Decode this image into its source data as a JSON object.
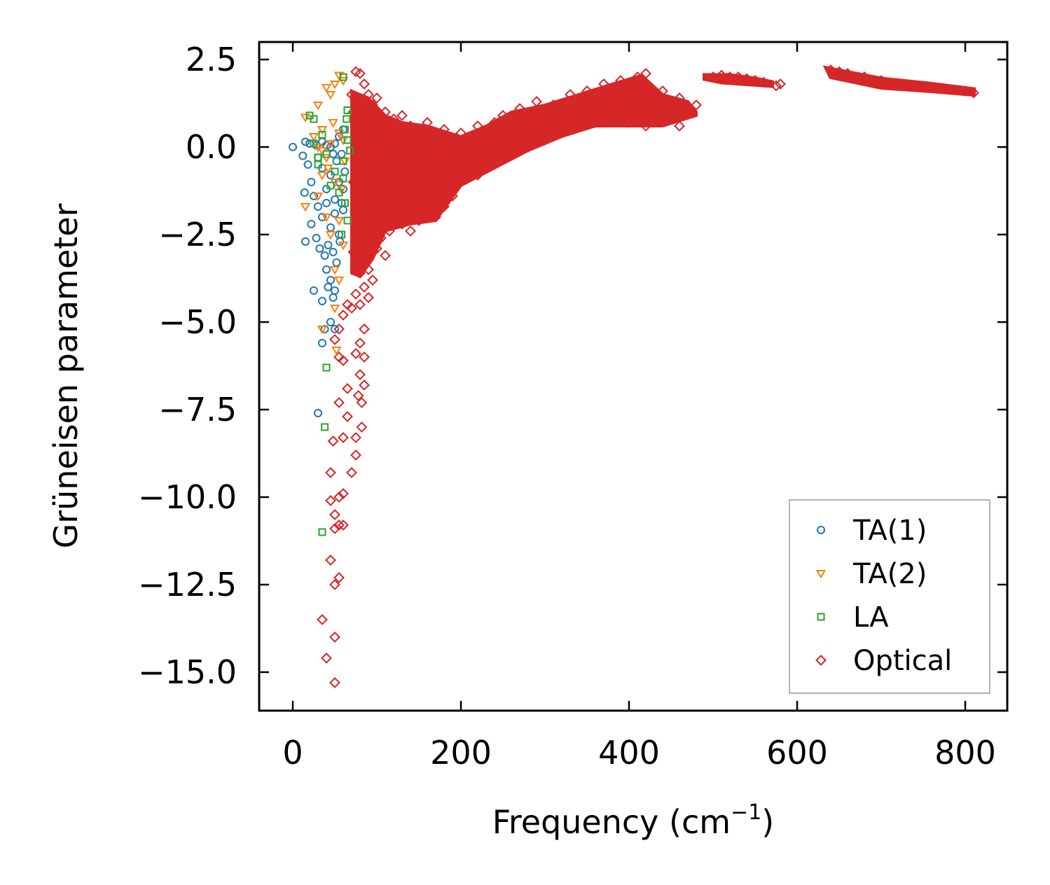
{
  "chart_data": {
    "type": "scatter",
    "title": "",
    "xlabel": "Frequency (cm",
    "xlabel_sup": "−1",
    "xlabel_close": ")",
    "ylabel": "Grüneisen parameter",
    "xlim": [
      -40,
      850
    ],
    "ylim": [
      -16.1,
      3.0
    ],
    "xticks": [
      0,
      200,
      400,
      600,
      800
    ],
    "xtick_labels": [
      "0",
      "200",
      "400",
      "600",
      "800"
    ],
    "yticks": [
      2.5,
      0,
      -2.5,
      -5,
      -7.5,
      -10,
      -12.5,
      -15
    ],
    "ytick_labels": [
      "2.5",
      "0.0",
      "−2.5",
      "−5.0",
      "−7.5",
      "−10.0",
      "−12.5",
      "−15.0"
    ],
    "grid": false,
    "legend_position": "bottom-right",
    "series": [
      {
        "name": "TA(1)",
        "marker": "circle",
        "color": "#1f77b4",
        "points": [
          [
            0,
            0
          ],
          [
            15,
            0.15
          ],
          [
            20,
            0.1
          ],
          [
            28,
            0.05
          ],
          [
            35,
            0.15
          ],
          [
            40,
            0.05
          ],
          [
            45,
            0
          ],
          [
            50,
            0.1
          ],
          [
            55,
            0.3
          ],
          [
            60,
            0.5
          ],
          [
            12,
            -0.25
          ],
          [
            18,
            -0.5
          ],
          [
            22,
            -1
          ],
          [
            30,
            -0.3
          ],
          [
            35,
            -0.6
          ],
          [
            40,
            -1.2
          ],
          [
            45,
            -0.8
          ],
          [
            50,
            -1.5
          ],
          [
            55,
            -1
          ],
          [
            58,
            -0.2
          ],
          [
            14,
            -1.3
          ],
          [
            25,
            -1.4
          ],
          [
            30,
            -1.7
          ],
          [
            35,
            -2
          ],
          [
            40,
            -1.6
          ],
          [
            45,
            -2.3
          ],
          [
            50,
            -1.9
          ],
          [
            55,
            -2.5
          ],
          [
            60,
            -1.8
          ],
          [
            15,
            -2.7
          ],
          [
            22,
            -2.2
          ],
          [
            28,
            -2.6
          ],
          [
            32,
            -2.9
          ],
          [
            38,
            -3.1
          ],
          [
            42,
            -2.8
          ],
          [
            48,
            -3
          ],
          [
            52,
            -3.3
          ],
          [
            56,
            -2.7
          ],
          [
            40,
            -3.5
          ],
          [
            45,
            -3.8
          ],
          [
            50,
            -4.1
          ],
          [
            42,
            -4
          ],
          [
            48,
            -4.3
          ],
          [
            25,
            -4.1
          ],
          [
            35,
            -4.4
          ],
          [
            45,
            -5
          ],
          [
            50,
            -5.2
          ],
          [
            38,
            -5.2
          ],
          [
            35,
            -5.6
          ],
          [
            30,
            -7.6
          ],
          [
            60,
            -1.2
          ],
          [
            62,
            -0.7
          ],
          [
            58,
            -1.6
          ],
          [
            52,
            -0.4
          ],
          [
            48,
            -0.2
          ]
        ]
      },
      {
        "name": "TA(2)",
        "marker": "triangle-down",
        "color": "#ff7f0e",
        "points": [
          [
            15,
            0.85
          ],
          [
            30,
            1.2
          ],
          [
            40,
            1.7
          ],
          [
            45,
            1.5
          ],
          [
            50,
            1.8
          ],
          [
            55,
            2.05
          ],
          [
            60,
            1.9
          ],
          [
            35,
            0.5
          ],
          [
            48,
            0.7
          ],
          [
            25,
            0.3
          ],
          [
            30,
            0
          ],
          [
            40,
            -0.3
          ],
          [
            45,
            0.1
          ],
          [
            55,
            0.4
          ],
          [
            60,
            0.2
          ],
          [
            35,
            -0.8
          ],
          [
            50,
            -1
          ],
          [
            58,
            -1.2
          ],
          [
            15,
            -1.7
          ],
          [
            30,
            -1.4
          ],
          [
            40,
            -2
          ],
          [
            45,
            -2.5
          ],
          [
            55,
            -2.1
          ],
          [
            60,
            -2.8
          ],
          [
            50,
            -3.5
          ],
          [
            55,
            -3.8
          ],
          [
            50,
            -4.6
          ],
          [
            35,
            -5.2
          ],
          [
            52,
            -5.8
          ],
          [
            35,
            -0.1
          ],
          [
            42,
            -0.6
          ],
          [
            62,
            -0.4
          ]
        ]
      },
      {
        "name": "LA",
        "marker": "square",
        "color": "#2ca02c",
        "points": [
          [
            20,
            0.9
          ],
          [
            25,
            0.8
          ],
          [
            35,
            0.35
          ],
          [
            60,
            2
          ],
          [
            65,
            1.05
          ],
          [
            62,
            0.5
          ],
          [
            65,
            0.2
          ],
          [
            68,
            -0.1
          ],
          [
            30,
            -0.5
          ],
          [
            40,
            -0.2
          ],
          [
            50,
            -0.7
          ],
          [
            55,
            -1.3
          ],
          [
            60,
            -0.9
          ],
          [
            62,
            -1.6
          ],
          [
            65,
            -2.1
          ],
          [
            58,
            -2.5
          ],
          [
            45,
            -1.1
          ],
          [
            40,
            -6.3
          ],
          [
            38,
            -8
          ],
          [
            35,
            -11
          ],
          [
            30,
            -0.3
          ],
          [
            25,
            0.1
          ],
          [
            60,
            -0.4
          ],
          [
            64,
            0.8
          ]
        ]
      },
      {
        "name": "Optical",
        "marker": "diamond",
        "color": "#d62728",
        "points": [
          [
            75,
            2.15
          ],
          [
            80,
            2.1
          ],
          [
            85,
            1.8
          ],
          [
            90,
            1.5
          ],
          [
            95,
            1.2
          ],
          [
            100,
            1.4
          ],
          [
            110,
            1
          ],
          [
            120,
            0.8
          ],
          [
            130,
            0.9
          ],
          [
            140,
            0.6
          ],
          [
            160,
            0.7
          ],
          [
            180,
            0.5
          ],
          [
            200,
            0.4
          ],
          [
            220,
            0.6
          ],
          [
            240,
            0.7
          ],
          [
            250,
            0.9
          ],
          [
            270,
            1.1
          ],
          [
            290,
            1.3
          ],
          [
            310,
            1.2
          ],
          [
            330,
            1.5
          ],
          [
            350,
            1.6
          ],
          [
            370,
            1.8
          ],
          [
            390,
            1.9
          ],
          [
            410,
            2
          ],
          [
            420,
            2.1
          ],
          [
            440,
            1.6
          ],
          [
            460,
            1.4
          ],
          [
            480,
            1.2
          ],
          [
            500,
            2
          ],
          [
            510,
            2.05
          ],
          [
            520,
            2
          ],
          [
            530,
            2
          ],
          [
            540,
            1.95
          ],
          [
            550,
            1.9
          ],
          [
            560,
            1.85
          ],
          [
            575,
            1.75
          ],
          [
            580,
            1.8
          ],
          [
            640,
            2.2
          ],
          [
            650,
            2.15
          ],
          [
            660,
            2.1
          ],
          [
            680,
            2
          ],
          [
            700,
            1.9
          ],
          [
            720,
            1.8
          ],
          [
            740,
            1.75
          ],
          [
            760,
            1.7
          ],
          [
            780,
            1.65
          ],
          [
            800,
            1.6
          ],
          [
            810,
            1.55
          ],
          [
            80,
            0.5
          ],
          [
            90,
            0.2
          ],
          [
            100,
            -0.1
          ],
          [
            110,
            -0.3
          ],
          [
            120,
            -0.5
          ],
          [
            130,
            -0.7
          ],
          [
            140,
            -0.6
          ],
          [
            150,
            -0.8
          ],
          [
            160,
            -0.5
          ],
          [
            170,
            -0.4
          ],
          [
            180,
            -0.2
          ],
          [
            190,
            -0.1
          ],
          [
            200,
            0
          ],
          [
            210,
            -0.3
          ],
          [
            220,
            -0.2
          ],
          [
            230,
            -0.1
          ],
          [
            240,
            0.1
          ],
          [
            250,
            0.2
          ],
          [
            260,
            0.4
          ],
          [
            270,
            0.5
          ],
          [
            280,
            0.7
          ],
          [
            300,
            0.8
          ],
          [
            320,
            0.9
          ],
          [
            340,
            1
          ],
          [
            360,
            1.1
          ],
          [
            380,
            1.2
          ],
          [
            400,
            1.3
          ],
          [
            420,
            1.1
          ],
          [
            440,
            1
          ],
          [
            460,
            0.9
          ],
          [
            470,
            1
          ],
          [
            80,
            -0.5
          ],
          [
            90,
            -1
          ],
          [
            100,
            -1.5
          ],
          [
            110,
            -1.8
          ],
          [
            120,
            -2
          ],
          [
            130,
            -2.2
          ],
          [
            140,
            -2.4
          ],
          [
            150,
            -2.1
          ],
          [
            160,
            -1.9
          ],
          [
            170,
            -2
          ],
          [
            180,
            -1.7
          ],
          [
            190,
            -1.4
          ],
          [
            200,
            -1
          ],
          [
            220,
            -0.8
          ],
          [
            240,
            -0.5
          ],
          [
            260,
            -0.2
          ],
          [
            280,
            0
          ],
          [
            300,
            0.2
          ],
          [
            320,
            0.4
          ],
          [
            340,
            0.6
          ],
          [
            360,
            0.7
          ],
          [
            380,
            0.8
          ],
          [
            400,
            0.7
          ],
          [
            420,
            0.6
          ],
          [
            440,
            0.8
          ],
          [
            460,
            0.6
          ],
          [
            82,
            -2
          ],
          [
            88,
            -2.5
          ],
          [
            95,
            -2.8
          ],
          [
            85,
            -3.2
          ],
          [
            90,
            -3.5
          ],
          [
            95,
            -3.8
          ],
          [
            80,
            -3.6
          ],
          [
            85,
            -4
          ],
          [
            90,
            -4.3
          ],
          [
            75,
            -4.2
          ],
          [
            80,
            -4.5
          ],
          [
            70,
            -4.6
          ],
          [
            65,
            -4.5
          ],
          [
            60,
            -4.8
          ],
          [
            55,
            -5.2
          ],
          [
            50,
            -5.5
          ],
          [
            85,
            -5.2
          ],
          [
            80,
            -5.6
          ],
          [
            85,
            -6
          ],
          [
            75,
            -5.9
          ],
          [
            60,
            -6.1
          ],
          [
            55,
            -6
          ],
          [
            80,
            -6.5
          ],
          [
            85,
            -6.8
          ],
          [
            65,
            -6.9
          ],
          [
            78,
            -7.1
          ],
          [
            82,
            -7.3
          ],
          [
            55,
            -7.3
          ],
          [
            65,
            -7.7
          ],
          [
            82,
            -8
          ],
          [
            75,
            -8.3
          ],
          [
            60,
            -8.3
          ],
          [
            48,
            -8.4
          ],
          [
            75,
            -8.8
          ],
          [
            45,
            -9.3
          ],
          [
            70,
            -9.3
          ],
          [
            55,
            -10
          ],
          [
            60,
            -9.9
          ],
          [
            45,
            -10.1
          ],
          [
            50,
            -10.5
          ],
          [
            55,
            -10.8
          ],
          [
            60,
            -10.8
          ],
          [
            50,
            -10.9
          ],
          [
            45,
            -11.8
          ],
          [
            55,
            -12.3
          ],
          [
            50,
            -12.5
          ],
          [
            35,
            -13.5
          ],
          [
            50,
            -14
          ],
          [
            40,
            -14.6
          ],
          [
            50,
            -15.3
          ],
          [
            70,
            1.5
          ],
          [
            72,
            1
          ],
          [
            75,
            0.3
          ],
          [
            78,
            -0.2
          ],
          [
            72,
            -1
          ],
          [
            75,
            -1.5
          ],
          [
            78,
            -2.5
          ],
          [
            72,
            -3
          ],
          [
            150,
            0.3
          ],
          [
            160,
            0.2
          ],
          [
            135,
            0.4
          ],
          [
            145,
            -1.2
          ],
          [
            165,
            -1.5
          ],
          [
            175,
            -1.3
          ],
          [
            185,
            -1
          ],
          [
            195,
            -0.7
          ],
          [
            210,
            -0.5
          ],
          [
            230,
            -0.6
          ],
          [
            255,
            -0.3
          ],
          [
            125,
            -1.6
          ],
          [
            115,
            -1.2
          ],
          [
            105,
            -0.8
          ],
          [
            95,
            -0.3
          ],
          [
            105,
            -2.6
          ],
          [
            115,
            -2.4
          ],
          [
            100,
            -2.9
          ],
          [
            110,
            -3.1
          ],
          [
            90,
            -3.1
          ],
          [
            85,
            -2.8
          ]
        ]
      }
    ]
  }
}
